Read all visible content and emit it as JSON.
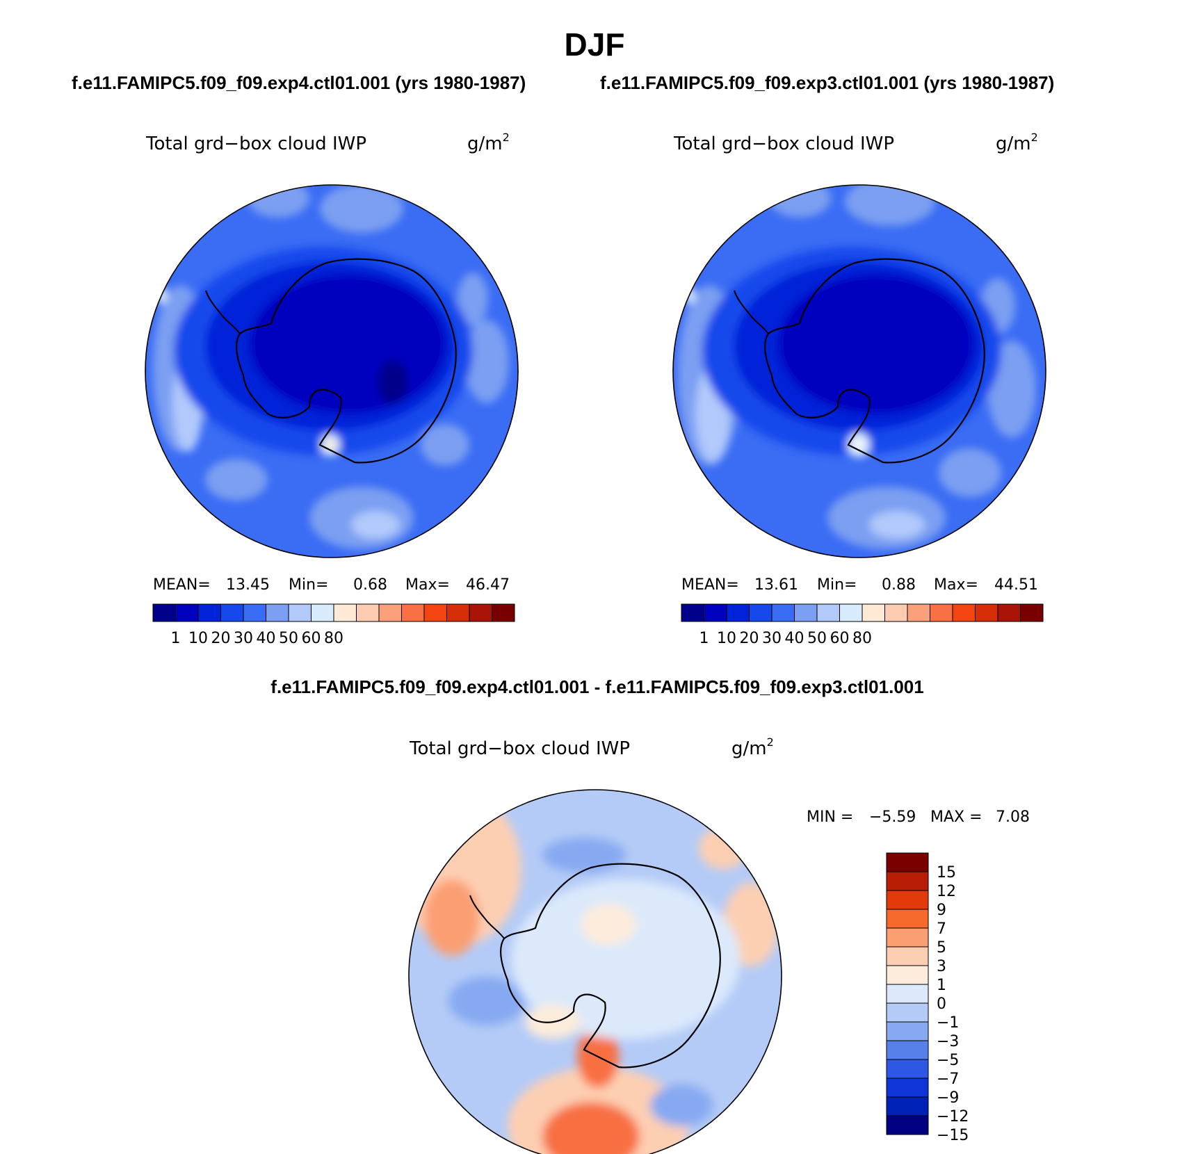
{
  "figure": {
    "title": "DJF",
    "subtitle_left": "f.e11.FAMIPC5.f09_f09.exp4.ctl01.001 (yrs 1980-1987)",
    "subtitle_right": "f.e11.FAMIPC5.f09_f09.exp3.ctl01.001 (yrs 1980-1987)",
    "diff_title": "f.e11.FAMIPC5.f09_f09.exp4.ctl01.001 - f.e11.FAMIPC5.f09_f09.exp3.ctl01.001"
  },
  "panels": [
    {
      "variable": "Total grd−box cloud IWP",
      "units_base": "g/m",
      "units_exp": "2",
      "stats": {
        "mean_label": "MEAN=",
        "mean": "13.45",
        "min_label": "Min=",
        "min": "0.68",
        "max_label": "Max=",
        "max": "46.47"
      }
    },
    {
      "variable": "Total grd−box cloud IWP",
      "units_base": "g/m",
      "units_exp": "2",
      "stats": {
        "mean_label": "MEAN=",
        "mean": "13.61",
        "min_label": "Min=",
        "min": "0.88",
        "max_label": "Max=",
        "max": "44.51"
      }
    }
  ],
  "diff_panel": {
    "variable": "Total grd−box cloud IWP",
    "units_base": "g/m",
    "units_exp": "2",
    "min_label": "MIN =",
    "min": "−5.59",
    "max_label": "MAX =",
    "max": "7.08"
  },
  "colorbar_abs": {
    "colors": [
      "#00008b",
      "#0000bf",
      "#0022d8",
      "#1648ec",
      "#3a6cf4",
      "#7b9ff2",
      "#b1c9fb",
      "#d8ebfc",
      "#fde9d6",
      "#fdcbb0",
      "#fca07c",
      "#f87043",
      "#f24511",
      "#d62e08",
      "#a81405",
      "#780000"
    ],
    "tick_labels": [
      "1",
      "10",
      "20",
      "30",
      "40",
      "50",
      "60",
      "80"
    ]
  },
  "colorbar_diff": {
    "colors_top_to_bottom": [
      "#7a0000",
      "#b81d05",
      "#e23a0a",
      "#f66a2e",
      "#fb9f73",
      "#fdcfb2",
      "#fdecdb",
      "#dbe9fb",
      "#b4cbf7",
      "#86a9f1",
      "#5880ea",
      "#2e58e3",
      "#0f35d6",
      "#0021b5",
      "#000080"
    ],
    "tick_labels": [
      "15",
      "12",
      "9",
      "7",
      "5",
      "3",
      "1",
      "0",
      "−1",
      "−3",
      "−5",
      "−7",
      "−9",
      "−12",
      "−15"
    ]
  }
}
